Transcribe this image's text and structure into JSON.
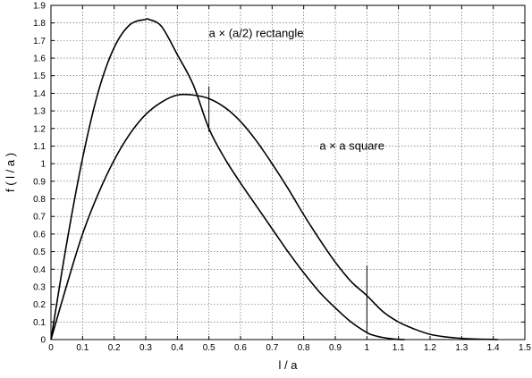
{
  "chart_data": {
    "type": "line",
    "title": "",
    "xlabel": "l / a",
    "ylabel": "f ( l / a )",
    "xlim": [
      0,
      1.5
    ],
    "ylim": [
      0,
      1.9
    ],
    "xticks": [
      "0",
      "0.1",
      "0.2",
      "0.3",
      "0.4",
      "0.5",
      "0.6",
      "0.7",
      "0.8",
      "0.9",
      "1",
      "1.1",
      "1.2",
      "1.3",
      "1.4",
      "1.5"
    ],
    "yticks": [
      "0",
      "0.1",
      "0.2",
      "0.3",
      "0.4",
      "0.5",
      "0.6",
      "0.7",
      "0.8",
      "0.9",
      "1",
      "1.1",
      "1.2",
      "1.3",
      "1.4",
      "1.5",
      "1.6",
      "1.7",
      "1.8",
      "1.9"
    ],
    "grid": true,
    "legend": "none",
    "series": [
      {
        "name": "a × (a/2) rectangle",
        "x": [
          0,
          0.05,
          0.1,
          0.15,
          0.2,
          0.25,
          0.3,
          0.31,
          0.35,
          0.4,
          0.45,
          0.5,
          0.55,
          0.6,
          0.65,
          0.7,
          0.75,
          0.8,
          0.85,
          0.9,
          0.95,
          1.0,
          1.02,
          1.05,
          1.08,
          1.1,
          1.12
        ],
        "y": [
          0,
          0.55,
          1.03,
          1.41,
          1.66,
          1.79,
          1.82,
          1.82,
          1.78,
          1.62,
          1.45,
          1.2,
          1.03,
          0.89,
          0.76,
          0.63,
          0.5,
          0.38,
          0.27,
          0.18,
          0.1,
          0.04,
          0.025,
          0.012,
          0.004,
          0.001,
          0
        ]
      },
      {
        "name": "a × a square",
        "x": [
          0,
          0.05,
          0.1,
          0.15,
          0.2,
          0.25,
          0.3,
          0.35,
          0.4,
          0.45,
          0.5,
          0.55,
          0.6,
          0.65,
          0.7,
          0.75,
          0.8,
          0.85,
          0.9,
          0.95,
          1.0,
          1.05,
          1.1,
          1.15,
          1.2,
          1.25,
          1.3,
          1.35,
          1.4,
          1.414
        ],
        "y": [
          0,
          0.31,
          0.6,
          0.83,
          1.02,
          1.17,
          1.28,
          1.35,
          1.39,
          1.39,
          1.37,
          1.32,
          1.24,
          1.13,
          1.0,
          0.86,
          0.71,
          0.57,
          0.44,
          0.33,
          0.25,
          0.16,
          0.1,
          0.06,
          0.03,
          0.015,
          0.007,
          0.003,
          0.001,
          0
        ]
      }
    ],
    "annotations": [
      {
        "text": "a × (a/2) rectangle",
        "x": 0.5,
        "y": 1.72
      },
      {
        "text": "a × a square",
        "x": 0.85,
        "y": 1.08
      }
    ],
    "vertical_markers": [
      {
        "x": 0.5,
        "y0": 1.18,
        "y1": 1.44
      },
      {
        "x": 1.0,
        "y0": 0.04,
        "y1": 0.42
      }
    ]
  }
}
